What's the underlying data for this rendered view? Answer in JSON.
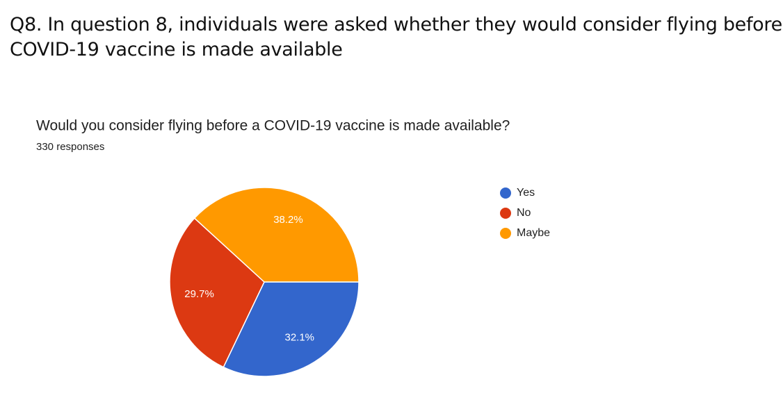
{
  "heading": [
    "Q8. In question 8, individuals were asked whether they would consider flying before a",
    "COVID-19 vaccine is made available"
  ],
  "chart_data": {
    "type": "pie",
    "title": "Would you consider flying before a COVID-19 vaccine is made available?",
    "subtitle": "330 responses",
    "categories": [
      "Yes",
      "No",
      "Maybe"
    ],
    "values": [
      32.1,
      29.7,
      38.2
    ],
    "value_labels": [
      "32.1%",
      "29.7%",
      "38.2%"
    ],
    "colors": [
      "#3366cc",
      "#dc3912",
      "#ff9900"
    ],
    "legend": "right"
  }
}
